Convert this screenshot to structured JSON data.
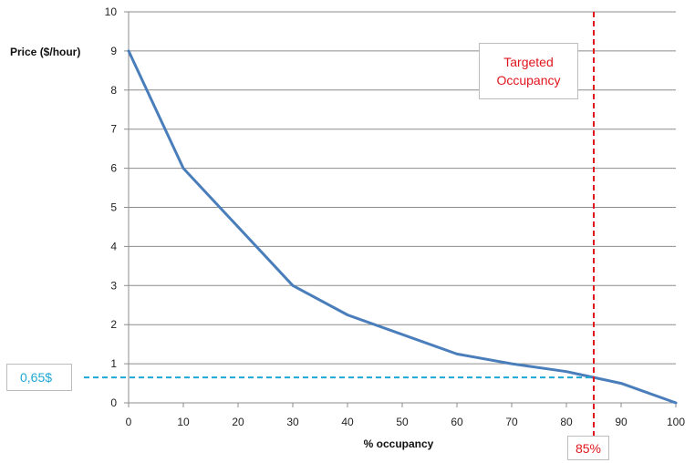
{
  "chart_data": {
    "type": "line",
    "title": "",
    "ylabel": "Price ($/hour)",
    "xlabel": "% occupancy",
    "xlim": [
      0,
      100
    ],
    "ylim": [
      0,
      10
    ],
    "grid": "horizontal",
    "x_ticks": [
      0,
      10,
      20,
      30,
      40,
      50,
      60,
      70,
      80,
      90,
      100
    ],
    "y_ticks": [
      0,
      1,
      2,
      3,
      4,
      5,
      6,
      7,
      8,
      9,
      10
    ],
    "x": [
      0,
      10,
      30,
      40,
      60,
      70,
      80,
      90,
      100
    ],
    "series": [
      {
        "values": [
          9,
          6,
          3,
          2.25,
          1.25,
          1.0,
          0.8,
          0.5,
          0.0
        ],
        "color": "#4a7ebb"
      }
    ],
    "annotations": {
      "targeted_occupancy": {
        "x": 85,
        "line1": "Targeted",
        "line2": "Occupancy",
        "label": "85%",
        "color": "#e0161d"
      },
      "price_at_target": {
        "y": 0.65,
        "label": "0,65$",
        "color": "#1ea7d2"
      }
    }
  }
}
